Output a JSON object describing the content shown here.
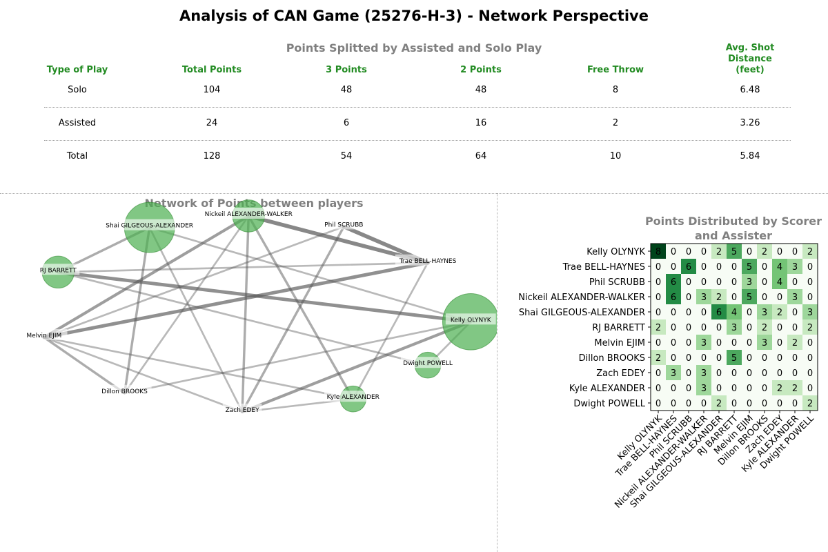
{
  "title": "Analysis of CAN Game (25276-H-3) - Network Perspective",
  "table": {
    "title": "Points Splitted by Assisted and Solo Play",
    "headers": [
      "Type of Play",
      "Total Points",
      "3 Points",
      "2 Points",
      "Free Throw",
      "Avg. Shot\nDistance\n(feet)"
    ],
    "rows": [
      [
        "Solo",
        "104",
        "48",
        "48",
        "8",
        "6.48"
      ],
      [
        "Assisted",
        "24",
        "6",
        "16",
        "2",
        "3.26"
      ],
      [
        "Total",
        "128",
        "54",
        "64",
        "10",
        "5.84"
      ]
    ]
  },
  "network_title": "Network of Points between players",
  "heatmap_title": "Points Distributed by Scorer\nand Assister",
  "colors": {
    "accent_green": "#228b22",
    "node_fill": "#4caf50",
    "edge": "#555555",
    "section_title": "#808080"
  },
  "chart_data": [
    {
      "type": "network",
      "title": "Network of Points between players",
      "nodes": [
        {
          "name": "Nickeil ALEXANDER-WALKER",
          "size": 3
        },
        {
          "name": "Phil SCRUBB",
          "size": 0
        },
        {
          "name": "Shai GILGEOUS-ALEXANDER",
          "size": 6
        },
        {
          "name": "Trae BELL-HAYNES",
          "size": 0
        },
        {
          "name": "RJ BARRETT",
          "size": 3
        },
        {
          "name": "Kelly OLYNYK",
          "size": 7
        },
        {
          "name": "Melvin EJIM",
          "size": 0
        },
        {
          "name": "Dwight POWELL",
          "size": 2
        },
        {
          "name": "Dillon BROOKS",
          "size": 0
        },
        {
          "name": "Zach EDEY",
          "size": 0
        },
        {
          "name": "Kyle ALEXANDER",
          "size": 2
        }
      ],
      "edges": [
        {
          "from": "Phil SCRUBB",
          "to": "Trae BELL-HAYNES",
          "weight": 6
        },
        {
          "from": "Nickeil ALEXANDER-WALKER",
          "to": "Trae BELL-HAYNES",
          "weight": 6
        },
        {
          "from": "Melvin EJIM",
          "to": "Trae BELL-HAYNES",
          "weight": 5
        },
        {
          "from": "RJ BARRETT",
          "to": "Kelly OLYNYK",
          "weight": 5
        },
        {
          "from": "Melvin EJIM",
          "to": "Nickeil ALEXANDER-WALKER",
          "weight": 4
        },
        {
          "from": "Zach EDEY",
          "to": "Kelly OLYNYK",
          "weight": 4
        },
        {
          "from": "Nickeil ALEXANDER-WALKER",
          "to": "Kyle ALEXANDER",
          "weight": 3
        },
        {
          "from": "RJ BARRETT",
          "to": "Shai GILGEOUS-ALEXANDER",
          "weight": 3
        },
        {
          "from": "Shai GILGEOUS-ALEXANDER",
          "to": "Dillon BROOKS",
          "weight": 3
        },
        {
          "from": "Nickeil ALEXANDER-WALKER",
          "to": "Zach EDEY",
          "weight": 3
        },
        {
          "from": "Melvin EJIM",
          "to": "Dillon BROOKS",
          "weight": 3
        },
        {
          "from": "Phil SCRUBB",
          "to": "Zach EDEY",
          "weight": 3
        },
        {
          "from": "Dillon BROOKS",
          "to": "Kelly OLYNYK",
          "weight": 2
        },
        {
          "from": "Shai GILGEOUS-ALEXANDER",
          "to": "Kelly OLYNYK",
          "weight": 2
        },
        {
          "from": "Dwight POWELL",
          "to": "Kelly OLYNYK",
          "weight": 2
        },
        {
          "from": "Melvin EJIM",
          "to": "Kyle ALEXANDER",
          "weight": 2
        },
        {
          "from": "RJ BARRETT",
          "to": "Dwight POWELL",
          "weight": 2
        },
        {
          "from": "RJ BARRETT",
          "to": "Trae BELL-HAYNES",
          "weight": 2
        },
        {
          "from": "Phil SCRUBB",
          "to": "Melvin EJIM",
          "weight": 2
        },
        {
          "from": "Zach EDEY",
          "to": "Kyle ALEXANDER",
          "weight": 2
        },
        {
          "from": "Shai GILGEOUS-ALEXANDER",
          "to": "Zach EDEY",
          "weight": 2
        },
        {
          "from": "Trae BELL-HAYNES",
          "to": "Kyle ALEXANDER",
          "weight": 2
        },
        {
          "from": "Nickeil ALEXANDER-WALKER",
          "to": "Dillon BROOKS",
          "weight": 2
        },
        {
          "from": "Melvin EJIM",
          "to": "Zach EDEY",
          "weight": 2
        }
      ]
    },
    {
      "type": "heatmap",
      "title": "Points Distributed by Scorer\nand Assister",
      "rows": [
        "Kelly OLYNYK",
        "Trae BELL-HAYNES",
        "Phil SCRUBB",
        "Nickeil ALEXANDER-WALKER",
        "Shai GILGEOUS-ALEXANDER",
        "RJ BARRETT",
        "Melvin EJIM",
        "Dillon BROOKS",
        "Zach EDEY",
        "Kyle ALEXANDER",
        "Dwight POWELL"
      ],
      "columns": [
        "Kelly OLYNYK",
        "Trae BELL-HAYNES",
        "Phil SCRUBB",
        "Nickeil ALEXANDER-WALKER",
        "Shai GILGEOUS-ALEXANDER",
        "RJ BARRETT",
        "Melvin EJIM",
        "Dillon BROOKS",
        "Zach EDEY",
        "Kyle ALEXANDER",
        "Dwight POWELL"
      ],
      "values": [
        [
          8,
          0,
          0,
          0,
          2,
          5,
          0,
          2,
          0,
          0,
          2
        ],
        [
          0,
          0,
          6,
          0,
          0,
          0,
          5,
          0,
          4,
          3,
          0
        ],
        [
          0,
          6,
          0,
          0,
          0,
          0,
          3,
          0,
          4,
          0,
          0
        ],
        [
          0,
          6,
          0,
          3,
          2,
          0,
          5,
          0,
          0,
          3,
          0
        ],
        [
          0,
          0,
          0,
          0,
          6,
          4,
          0,
          3,
          2,
          0,
          3
        ],
        [
          2,
          0,
          0,
          0,
          0,
          3,
          0,
          2,
          0,
          0,
          2
        ],
        [
          0,
          0,
          0,
          3,
          0,
          0,
          0,
          3,
          0,
          2,
          0
        ],
        [
          2,
          0,
          0,
          0,
          0,
          5,
          0,
          0,
          0,
          0,
          0
        ],
        [
          0,
          3,
          0,
          3,
          0,
          0,
          0,
          0,
          0,
          0,
          0
        ],
        [
          0,
          0,
          0,
          3,
          0,
          0,
          0,
          0,
          2,
          2,
          0
        ],
        [
          0,
          0,
          0,
          0,
          2,
          0,
          0,
          0,
          0,
          0,
          2
        ]
      ],
      "vmin": 0,
      "vmax": 8,
      "colormap": "Greens"
    }
  ]
}
